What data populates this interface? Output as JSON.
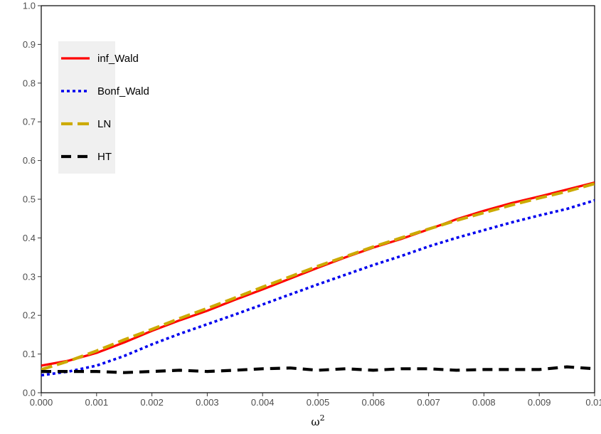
{
  "chart_data": {
    "type": "line",
    "title": "",
    "xlabel": "ω",
    "xlabel_superscript": "2",
    "ylabel": "",
    "xlim": [
      0,
      0.01
    ],
    "ylim": [
      0,
      1
    ],
    "x_ticks": [
      0,
      0.001,
      0.002,
      0.003,
      0.004,
      0.005,
      0.006,
      0.007,
      0.008,
      0.009,
      0.01
    ],
    "x_tick_labels": [
      "0.000",
      "0.001",
      "0.002",
      "0.003",
      "0.004",
      "0.005",
      "0.006",
      "0.007",
      "0.008",
      "0.009",
      "0.01"
    ],
    "y_ticks": [
      0,
      0.1,
      0.2,
      0.3,
      0.4,
      0.5,
      0.6,
      0.7,
      0.8,
      0.9,
      1.0
    ],
    "y_tick_labels": [
      "0.0",
      "0.1",
      "0.2",
      "0.3",
      "0.4",
      "0.5",
      "0.6",
      "0.7",
      "0.8",
      "0.9",
      "1.0"
    ],
    "grid": false,
    "legend_position": "top-left",
    "series": [
      {
        "name": "inf_Wald",
        "color": "#ff0000",
        "dash": "solid",
        "x": [
          0,
          0.0005,
          0.001,
          0.0015,
          0.002,
          0.0025,
          0.003,
          0.0035,
          0.004,
          0.0045,
          0.005,
          0.0055,
          0.006,
          0.0065,
          0.007,
          0.0075,
          0.008,
          0.0085,
          0.009,
          0.0095,
          0.01
        ],
        "values": [
          0.07,
          0.083,
          0.103,
          0.13,
          0.16,
          0.187,
          0.212,
          0.24,
          0.267,
          0.295,
          0.323,
          0.35,
          0.375,
          0.397,
          0.422,
          0.448,
          0.47,
          0.49,
          0.507,
          0.525,
          0.543
        ]
      },
      {
        "name": "Bonf_Wald",
        "color": "#0000ee",
        "dash": "dotted",
        "x": [
          0,
          0.0005,
          0.001,
          0.0015,
          0.002,
          0.0025,
          0.003,
          0.0035,
          0.004,
          0.0045,
          0.005,
          0.0055,
          0.006,
          0.0065,
          0.007,
          0.0075,
          0.008,
          0.0085,
          0.009,
          0.0095,
          0.01
        ],
        "values": [
          0.045,
          0.055,
          0.07,
          0.095,
          0.125,
          0.152,
          0.177,
          0.202,
          0.228,
          0.254,
          0.28,
          0.305,
          0.33,
          0.353,
          0.378,
          0.4,
          0.42,
          0.44,
          0.458,
          0.475,
          0.497
        ]
      },
      {
        "name": "LN",
        "color": "#ccaa00",
        "dash": "dashed",
        "x": [
          0,
          0.0005,
          0.001,
          0.0015,
          0.002,
          0.0025,
          0.003,
          0.0035,
          0.004,
          0.0045,
          0.005,
          0.0055,
          0.006,
          0.0065,
          0.007,
          0.0075,
          0.008,
          0.0085,
          0.009,
          0.0095,
          0.01
        ],
        "values": [
          0.06,
          0.082,
          0.108,
          0.137,
          0.164,
          0.192,
          0.218,
          0.245,
          0.273,
          0.3,
          0.327,
          0.352,
          0.377,
          0.4,
          0.423,
          0.445,
          0.465,
          0.485,
          0.503,
          0.52,
          0.54
        ]
      },
      {
        "name": "HT",
        "color": "#000000",
        "dash": "longdash",
        "x": [
          0,
          0.0005,
          0.001,
          0.0015,
          0.002,
          0.0025,
          0.003,
          0.0035,
          0.004,
          0.0045,
          0.005,
          0.0055,
          0.006,
          0.0065,
          0.007,
          0.0075,
          0.008,
          0.0085,
          0.009,
          0.0095,
          0.01
        ],
        "values": [
          0.055,
          0.055,
          0.055,
          0.052,
          0.055,
          0.058,
          0.055,
          0.058,
          0.062,
          0.064,
          0.058,
          0.062,
          0.058,
          0.062,
          0.062,
          0.058,
          0.06,
          0.06,
          0.06,
          0.067,
          0.062
        ]
      }
    ]
  }
}
